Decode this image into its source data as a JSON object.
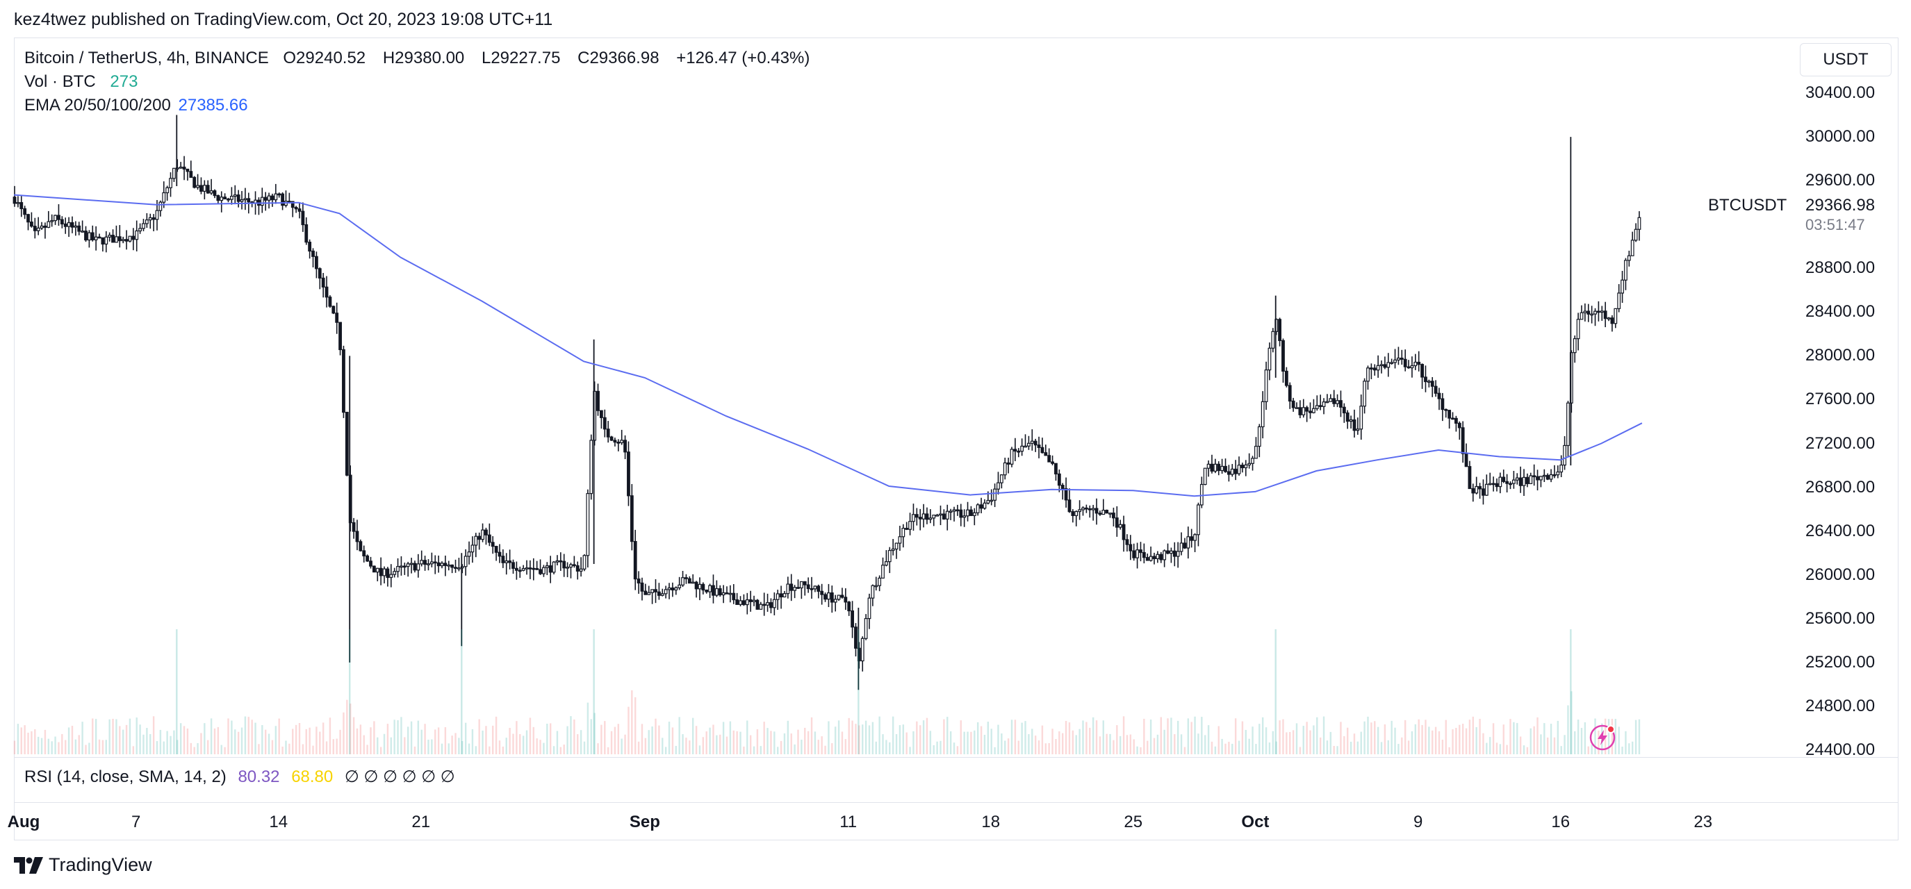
{
  "publish_line": "kez4twez published on TradingView.com, Oct 20, 2023 19:08 UTC+11",
  "legend": {
    "symbol": "Bitcoin / TetherUS, 4h, BINANCE",
    "open_label": "O",
    "open": "29240.52",
    "high_label": "H",
    "high": "29380.00",
    "low_label": "L",
    "low": "29227.75",
    "close_label": "C",
    "close": "29366.98",
    "change": "+126.47 (+0.43%)",
    "vol_label": "Vol · BTC",
    "vol_value": "273",
    "ema_label": "EMA 20/50/100/200",
    "ema_value": "27385.66"
  },
  "currency_button": "USDT",
  "symbol_label": "BTCUSDT",
  "last_price": "29366.98",
  "countdown": "03:51:47",
  "rsi": {
    "label": "RSI (14, close, SMA, 14, 2)",
    "value1": "80.32",
    "value2": "68.80",
    "na_values": [
      "∅",
      "∅",
      "∅",
      "∅",
      "∅",
      "∅"
    ]
  },
  "brand": "TradingView",
  "colors": {
    "candle": "#131722",
    "ema": "#5b6cf0",
    "vol_teal": "#26a69a",
    "vol_teal_text": "#22ab94",
    "vol_red": "#ef5350",
    "ema_value_text": "#2962ff",
    "rsi_purple": "#7e57c2",
    "rsi_yellow": "#f7d300",
    "alert": "#e040b0"
  },
  "chart_data": {
    "type": "candlestick",
    "title": "Bitcoin / TetherUS, 4h, BINANCE",
    "timeframe": "4h",
    "x_range": [
      "2023-08-01",
      "2023-10-24"
    ],
    "ylim": [
      24400,
      30600
    ],
    "y_ticks": [
      "30400.00",
      "30000.00",
      "29600.00",
      "28800.00",
      "28400.00",
      "28000.00",
      "27600.00",
      "27200.00",
      "26800.00",
      "26400.00",
      "26000.00",
      "25600.00",
      "25200.00",
      "24800.00",
      "24400.00"
    ],
    "x_ticks": [
      {
        "label": "Aug",
        "date": "2023-08-01",
        "bold": true
      },
      {
        "label": "7",
        "date": "2023-08-07",
        "bold": false
      },
      {
        "label": "14",
        "date": "2023-08-14",
        "bold": false
      },
      {
        "label": "21",
        "date": "2023-08-21",
        "bold": false
      },
      {
        "label": "Sep",
        "date": "2023-09-01",
        "bold": true
      },
      {
        "label": "11",
        "date": "2023-09-11",
        "bold": false
      },
      {
        "label": "18",
        "date": "2023-09-18",
        "bold": false
      },
      {
        "label": "25",
        "date": "2023-09-25",
        "bold": false
      },
      {
        "label": "Oct",
        "date": "2023-10-01",
        "bold": true
      },
      {
        "label": "9",
        "date": "2023-10-09",
        "bold": false
      },
      {
        "label": "16",
        "date": "2023-10-16",
        "bold": false
      },
      {
        "label": "23",
        "date": "2023-10-23",
        "bold": false
      }
    ],
    "price_path": [
      [
        "2023-08-01",
        29450
      ],
      [
        "2023-08-02",
        29100
      ],
      [
        "2023-08-03",
        29250
      ],
      [
        "2023-08-05",
        29050
      ],
      [
        "2023-08-07",
        29100
      ],
      [
        "2023-08-08",
        29300
      ],
      [
        "2023-08-09",
        29750
      ],
      [
        "2023-08-10",
        29550
      ],
      [
        "2023-08-11",
        29450
      ],
      [
        "2023-08-13",
        29400
      ],
      [
        "2023-08-14",
        29450
      ],
      [
        "2023-08-15",
        29300
      ],
      [
        "2023-08-16",
        28700
      ],
      [
        "2023-08-17",
        28200
      ],
      [
        "2023-08-17T12",
        26500
      ],
      [
        "2023-08-18",
        26200
      ],
      [
        "2023-08-19",
        26000
      ],
      [
        "2023-08-21",
        26100
      ],
      [
        "2023-08-23",
        26100
      ],
      [
        "2023-08-24",
        26400
      ],
      [
        "2023-08-25",
        26100
      ],
      [
        "2023-08-27",
        26050
      ],
      [
        "2023-08-28",
        26100
      ],
      [
        "2023-08-29",
        26050
      ],
      [
        "2023-08-29T12",
        27700
      ],
      [
        "2023-08-30",
        27300
      ],
      [
        "2023-08-31",
        27200
      ],
      [
        "2023-08-31T12",
        26000
      ],
      [
        "2023-09-01",
        25800
      ],
      [
        "2023-09-03",
        25950
      ],
      [
        "2023-09-05",
        25800
      ],
      [
        "2023-09-07",
        25700
      ],
      [
        "2023-09-08",
        25900
      ],
      [
        "2023-09-09",
        25900
      ],
      [
        "2023-09-10",
        25800
      ],
      [
        "2023-09-11",
        25750
      ],
      [
        "2023-09-11T12",
        25150
      ],
      [
        "2023-09-12",
        25800
      ],
      [
        "2023-09-13",
        26200
      ],
      [
        "2023-09-14",
        26500
      ],
      [
        "2023-09-15",
        26550
      ],
      [
        "2023-09-16",
        26550
      ],
      [
        "2023-09-17",
        26550
      ],
      [
        "2023-09-18",
        26700
      ],
      [
        "2023-09-19",
        27100
      ],
      [
        "2023-09-20",
        27200
      ],
      [
        "2023-09-21",
        27000
      ],
      [
        "2023-09-22",
        26550
      ],
      [
        "2023-09-23",
        26600
      ],
      [
        "2023-09-24",
        26550
      ],
      [
        "2023-09-25",
        26200
      ],
      [
        "2023-09-26",
        26150
      ],
      [
        "2023-09-27",
        26200
      ],
      [
        "2023-09-28",
        26350
      ],
      [
        "2023-09-28T12",
        27000
      ],
      [
        "2023-09-30",
        26950
      ],
      [
        "2023-10-01",
        27100
      ],
      [
        "2023-10-01T12",
        27800
      ],
      [
        "2023-10-02",
        28400
      ],
      [
        "2023-10-02T12",
        27700
      ],
      [
        "2023-10-03",
        27500
      ],
      [
        "2023-10-04",
        27500
      ],
      [
        "2023-10-05",
        27600
      ],
      [
        "2023-10-06",
        27300
      ],
      [
        "2023-10-06T12",
        27900
      ],
      [
        "2023-10-07",
        27900
      ],
      [
        "2023-10-08",
        27950
      ],
      [
        "2023-10-09",
        27900
      ],
      [
        "2023-10-10",
        27600
      ],
      [
        "2023-10-11",
        27350
      ],
      [
        "2023-10-11T12",
        26800
      ],
      [
        "2023-10-12",
        26750
      ],
      [
        "2023-10-13",
        26850
      ],
      [
        "2023-10-14",
        26850
      ],
      [
        "2023-10-15",
        26900
      ],
      [
        "2023-10-16",
        26950
      ],
      [
        "2023-10-16T06",
        27200
      ],
      [
        "2023-10-16T12",
        28000
      ],
      [
        "2023-10-17",
        28400
      ],
      [
        "2023-10-18",
        28400
      ],
      [
        "2023-10-18T12",
        28300
      ],
      [
        "2023-10-19",
        28700
      ],
      [
        "2023-10-20",
        29367
      ]
    ],
    "spikes": [
      {
        "date": "2023-08-09",
        "low": 29550,
        "high": 30200
      },
      {
        "date": "2023-08-17T12",
        "low": 25200,
        "high": 28000
      },
      {
        "date": "2023-08-23",
        "low": 25350,
        "high": 26200
      },
      {
        "date": "2023-08-29T12",
        "low": 26100,
        "high": 28150
      },
      {
        "date": "2023-09-11T12",
        "low": 24950,
        "high": 25700
      },
      {
        "date": "2023-10-02",
        "low": 27800,
        "high": 28550
      },
      {
        "date": "2023-10-16T12",
        "low": 27000,
        "high": 30000
      }
    ],
    "ema_path": [
      [
        "2023-08-01",
        29470
      ],
      [
        "2023-08-08",
        29380
      ],
      [
        "2023-08-15",
        29400
      ],
      [
        "2023-08-17",
        29300
      ],
      [
        "2023-08-20",
        28900
      ],
      [
        "2023-08-24",
        28500
      ],
      [
        "2023-08-29",
        27950
      ],
      [
        "2023-09-01",
        27800
      ],
      [
        "2023-09-05",
        27450
      ],
      [
        "2023-09-09",
        27150
      ],
      [
        "2023-09-13",
        26810
      ],
      [
        "2023-09-17",
        26730
      ],
      [
        "2023-09-21",
        26780
      ],
      [
        "2023-09-25",
        26770
      ],
      [
        "2023-09-28",
        26720
      ],
      [
        "2023-10-01",
        26760
      ],
      [
        "2023-10-04",
        26950
      ],
      [
        "2023-10-07",
        27050
      ],
      [
        "2023-10-10",
        27140
      ],
      [
        "2023-10-13",
        27080
      ],
      [
        "2023-10-16",
        27050
      ],
      [
        "2023-10-18",
        27200
      ],
      [
        "2023-10-20",
        27386
      ]
    ]
  }
}
